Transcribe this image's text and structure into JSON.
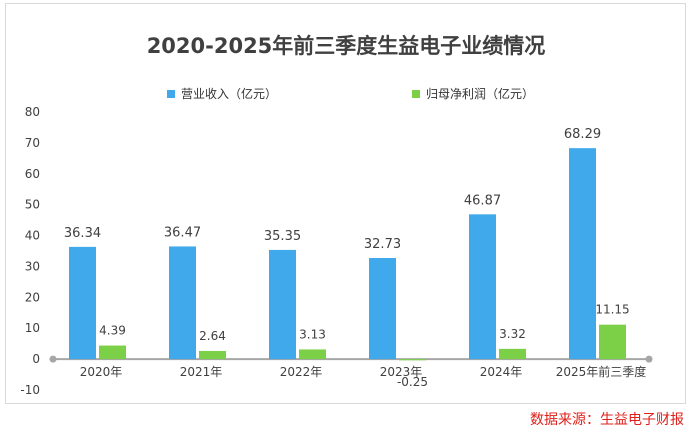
{
  "source": "数据来源：生益电子财报",
  "chart_data": {
    "type": "bar",
    "title": "2020-2025年前三季度生益电子业绩情况",
    "categories": [
      "2020年",
      "2021年",
      "2022年",
      "2023年",
      "2024年",
      "2025年前三季度"
    ],
    "series": [
      {
        "name": "营业收入（亿元）",
        "color": "#3fa9ec",
        "values": [
          36.34,
          36.47,
          35.35,
          32.73,
          46.87,
          68.29
        ],
        "labels": [
          "36.34",
          "36.47",
          "35.35",
          "32.73",
          "46.87",
          "68.29"
        ]
      },
      {
        "name": "归母净利润（亿元）",
        "color": "#7cd047",
        "values": [
          4.39,
          2.64,
          3.13,
          -0.25,
          3.32,
          11.15
        ],
        "labels": [
          "4.39",
          "2.64",
          "3.13",
          "-0.25",
          "3.32",
          "11.15"
        ]
      }
    ],
    "ylim": [
      -10,
      80
    ],
    "yticks": [
      "-10",
      "0",
      "10",
      "20",
      "30",
      "40",
      "50",
      "60",
      "70",
      "80"
    ],
    "xlabel": "",
    "ylabel": "",
    "grid": false,
    "legend_position": "top"
  }
}
